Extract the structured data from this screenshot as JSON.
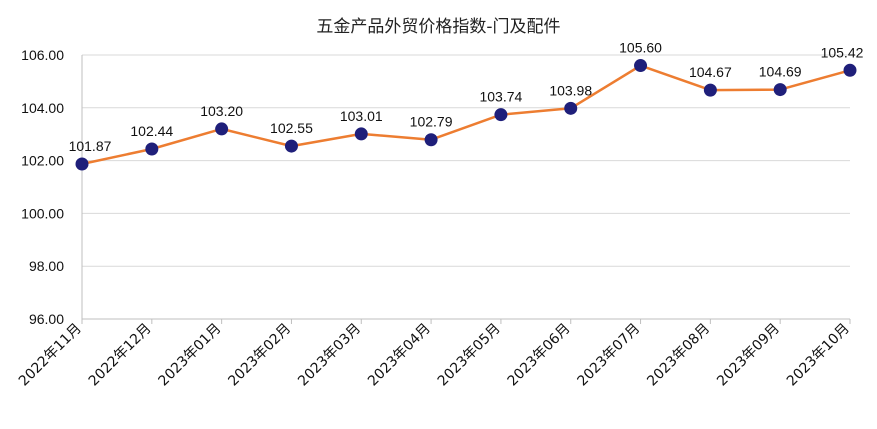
{
  "chart_data": {
    "type": "line",
    "title": "五金产品外贸价格指数-门及配件",
    "xlabel": "",
    "ylabel": "",
    "categories": [
      "2022年11月",
      "2022年12月",
      "2023年01月",
      "2023年02月",
      "2023年03月",
      "2023年04月",
      "2023年05月",
      "2023年06月",
      "2023年07月",
      "2023年08月",
      "2023年09月",
      "2023年10月"
    ],
    "series": [
      {
        "values": [
          101.87,
          102.44,
          103.2,
          102.55,
          103.01,
          102.79,
          103.74,
          103.98,
          105.6,
          104.67,
          104.69,
          105.42
        ]
      }
    ],
    "data_labels": [
      "101.87",
      "102.44",
      "103.20",
      "102.55",
      "103.01",
      "102.79",
      "103.74",
      "103.98",
      "105.60",
      "104.67",
      "104.69",
      "105.42"
    ],
    "ylim": [
      96,
      106
    ],
    "yticks": [
      "96.00",
      "98.00",
      "100.00",
      "102.00",
      "104.00",
      "106.00"
    ],
    "grid": true,
    "legend": "none",
    "colors": {
      "line": "#ED7D31",
      "marker": "#1F1F7A",
      "grid": "#D9D9D9",
      "axis": "#BFBFBF"
    }
  }
}
